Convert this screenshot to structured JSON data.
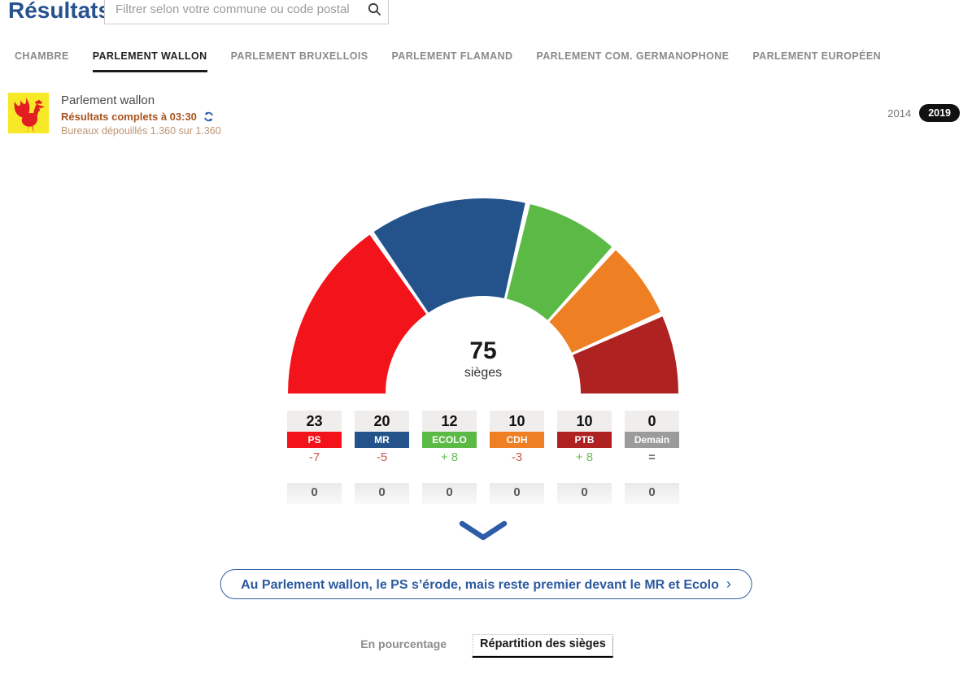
{
  "page": {
    "title": "Résultats"
  },
  "search": {
    "placeholder": "Filtrer selon votre commune ou code postal"
  },
  "tabs": [
    {
      "label": "CHAMBRE",
      "active": false
    },
    {
      "label": "PARLEMENT WALLON",
      "active": true
    },
    {
      "label": "PARLEMENT BRUXELLOIS",
      "active": false
    },
    {
      "label": "PARLEMENT FLAMAND",
      "active": false
    },
    {
      "label": "PARLEMENT COM. GERMANOPHONE",
      "active": false
    },
    {
      "label": "PARLEMENT EUROPÉEN",
      "active": false
    }
  ],
  "region": {
    "name": "Parlement wallon",
    "status": "Résultats complets à 03:30",
    "bureaux": "Bureaux dépouillés 1.360 sur 1.360"
  },
  "years": {
    "previous": "2014",
    "current": "2019"
  },
  "chart_data": {
    "type": "donut",
    "shape": "semicircle",
    "total_seats": 75,
    "total_label": "75",
    "total_unit": "sièges",
    "legend_position": "below",
    "series": [
      {
        "name": "PS",
        "seats": 23,
        "color": "#F3131B",
        "delta": "-7",
        "trend": "down"
      },
      {
        "name": "MR",
        "seats": 20,
        "color": "#24538C",
        "delta": "-5",
        "trend": "down"
      },
      {
        "name": "ECOLO",
        "seats": 12,
        "color": "#5BBA46",
        "delta": "+ 8",
        "trend": "up"
      },
      {
        "name": "CDH",
        "seats": 10,
        "color": "#EE7F22",
        "delta": "-3",
        "trend": "down"
      },
      {
        "name": "PTB",
        "seats": 10,
        "color": "#AE2322",
        "delta": "+ 8",
        "trend": "up"
      },
      {
        "name": "Demain",
        "seats": 0,
        "color": "#9B9B9B",
        "delta": "=",
        "trend": "same"
      }
    ]
  },
  "secondary_row_values": [
    "0",
    "0",
    "0",
    "0",
    "0",
    "0"
  ],
  "headline": {
    "text": "Au Parlement wallon, le PS s’érode, mais reste premier devant le MR et Ecolo",
    "chevron": "›"
  },
  "bottom_tabs": [
    {
      "label": "En pourcentage",
      "active": false
    },
    {
      "label": "Répartition des sièges",
      "active": true
    }
  ],
  "colors": {
    "title_blue": "#27518E",
    "accent_blue": "#2D5CA8",
    "status_orange": "#A8541F",
    "bureaux_tan": "#BE9572",
    "delta_down": "#C75B55",
    "delta_up": "#6CBE53"
  }
}
